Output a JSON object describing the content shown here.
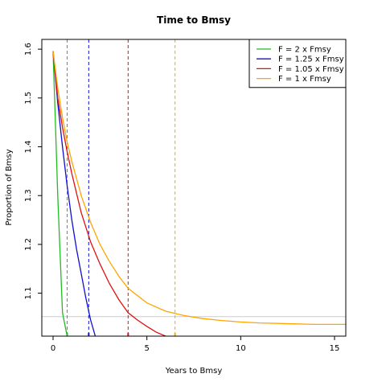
{
  "chart_data": {
    "type": "line",
    "title": "Time to Bmsy",
    "xlabel": "Years to Bmsy",
    "ylabel": "Proportion of Bmsy",
    "xlim": [
      -0.6,
      15.6
    ],
    "ylim": [
      1.012,
      1.62
    ],
    "x_ticks": [
      0,
      5,
      10,
      15
    ],
    "y_ticks": [
      1.1,
      1.2,
      1.3,
      1.4,
      1.5,
      1.6
    ],
    "grid": false,
    "legend_position": "top-right",
    "reference_line_y": 1.052,
    "series": [
      {
        "name": "F = 2 x Fmsy",
        "color": "#22bb22",
        "crossing_year": 0.75,
        "x": [
          0,
          0.25,
          0.5,
          0.75
        ],
        "y": [
          1.596,
          1.3,
          1.06,
          1.012
        ]
      },
      {
        "name": "F = 1.25 x Fmsy",
        "color": "#1010d0",
        "crossing_year": 1.9,
        "x": [
          0,
          0.25,
          0.5,
          0.75,
          1.0,
          1.25,
          1.5,
          1.75,
          2.0,
          2.25
        ],
        "y": [
          1.596,
          1.49,
          1.4,
          1.32,
          1.25,
          1.19,
          1.14,
          1.09,
          1.045,
          1.012
        ]
      },
      {
        "name": "F = 1.05 x Fmsy",
        "color": "#e01010",
        "crossing_year": 4.0,
        "x": [
          0,
          0.25,
          0.5,
          0.75,
          1,
          1.5,
          2,
          2.5,
          3,
          3.5,
          4,
          4.5,
          5,
          5.5,
          6
        ],
        "y": [
          1.596,
          1.5,
          1.44,
          1.39,
          1.345,
          1.265,
          1.205,
          1.16,
          1.12,
          1.087,
          1.06,
          1.045,
          1.032,
          1.02,
          1.012
        ]
      },
      {
        "name": "F = 1 x Fmsy",
        "color": "#ffa500",
        "crossing_year": 6.5,
        "x": [
          0,
          0.25,
          0.5,
          0.75,
          1,
          1.5,
          2,
          2.5,
          3,
          3.5,
          4,
          5,
          6,
          7,
          8,
          9,
          10,
          11,
          12,
          13,
          14,
          15,
          15.6
        ],
        "y": [
          1.596,
          1.52,
          1.46,
          1.41,
          1.37,
          1.3,
          1.245,
          1.2,
          1.165,
          1.135,
          1.11,
          1.08,
          1.063,
          1.054,
          1.048,
          1.044,
          1.041,
          1.039,
          1.038,
          1.037,
          1.036,
          1.036,
          1.036
        ]
      }
    ]
  }
}
